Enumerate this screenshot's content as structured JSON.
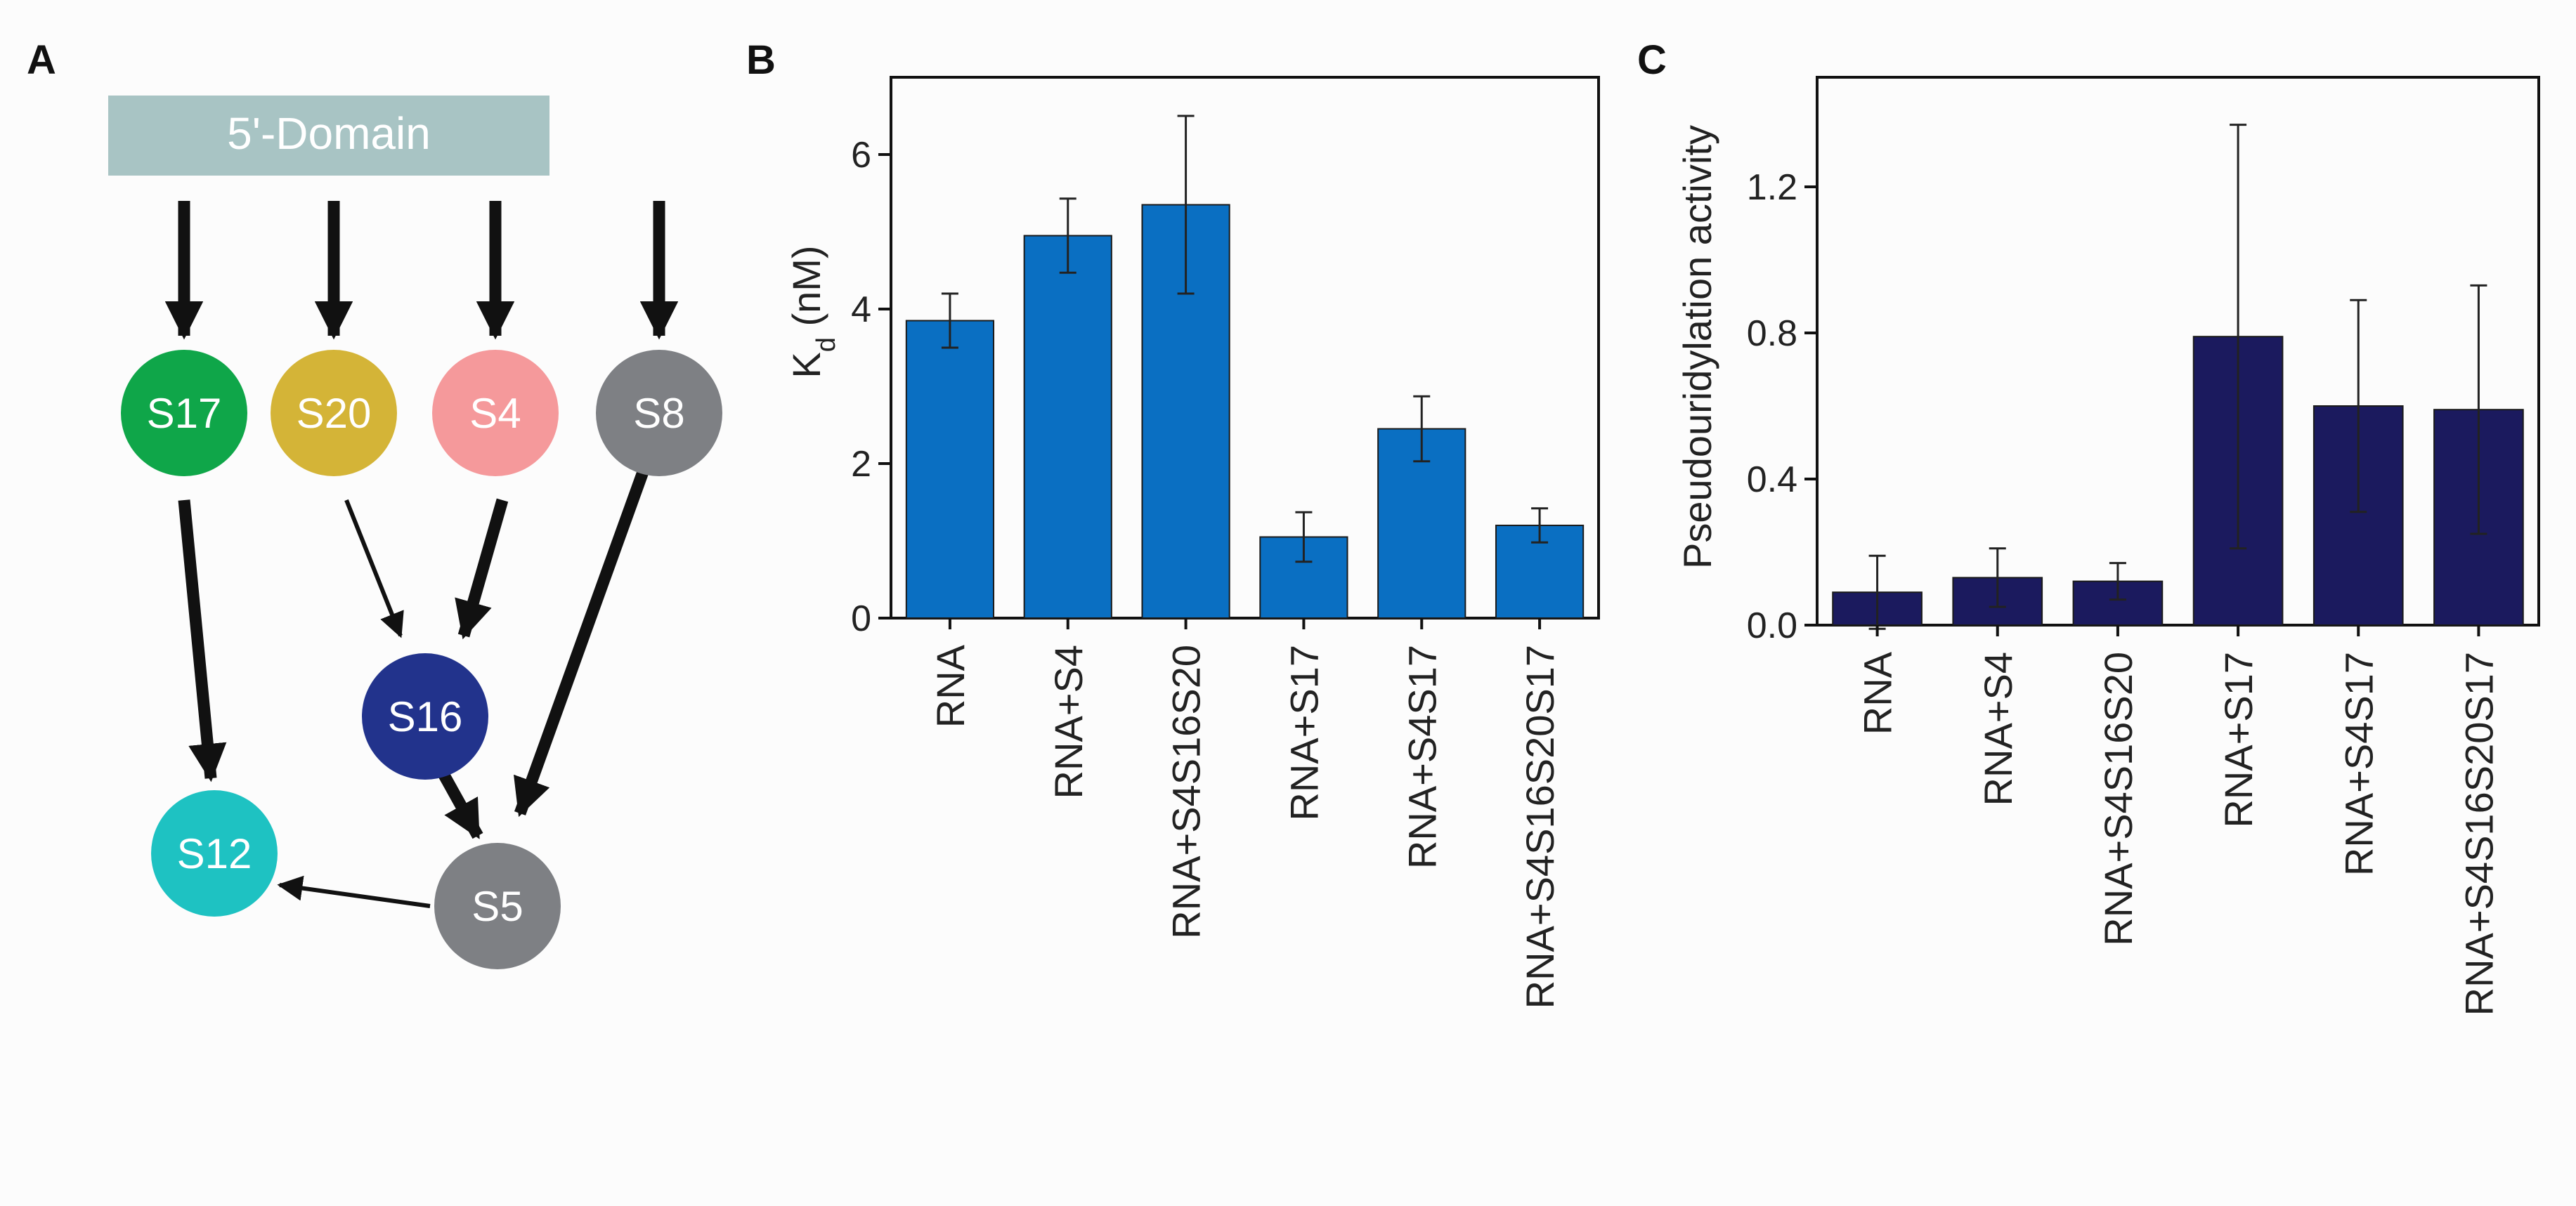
{
  "panels": {
    "A": {
      "label": "A",
      "domain_label": "5'-Domain",
      "nodes": [
        {
          "id": "S17",
          "label": "S17",
          "color": "#0fa649"
        },
        {
          "id": "S20",
          "label": "S20",
          "color": "#d4b437"
        },
        {
          "id": "S4",
          "label": "S4",
          "color": "#f5999b"
        },
        {
          "id": "S8",
          "label": "S8",
          "color": "#7e8084"
        },
        {
          "id": "S16",
          "label": "S16",
          "color": "#22338c"
        },
        {
          "id": "S12",
          "label": "S12",
          "color": "#1ec2c2"
        },
        {
          "id": "S5",
          "label": "S5",
          "color": "#7e8084"
        }
      ],
      "edges": [
        {
          "from": "5'-Domain",
          "to": "S17",
          "weight": "strong"
        },
        {
          "from": "5'-Domain",
          "to": "S20",
          "weight": "strong"
        },
        {
          "from": "5'-Domain",
          "to": "S4",
          "weight": "strong"
        },
        {
          "from": "5'-Domain",
          "to": "S8",
          "weight": "strong"
        },
        {
          "from": "S17",
          "to": "S12",
          "weight": "strong"
        },
        {
          "from": "S20",
          "to": "S16",
          "weight": "weak"
        },
        {
          "from": "S4",
          "to": "S16",
          "weight": "strong"
        },
        {
          "from": "S8",
          "to": "S5",
          "weight": "strong"
        },
        {
          "from": "S16",
          "to": "S5",
          "weight": "strong"
        },
        {
          "from": "S5",
          "to": "S12",
          "weight": "weak"
        }
      ],
      "domain_color": "#a8c4c4"
    },
    "B": {
      "label": "B"
    },
    "C": {
      "label": "C"
    }
  },
  "chart_data": [
    {
      "panel": "B",
      "type": "bar",
      "categories": [
        "RNA",
        "RNA+S4",
        "RNA+S4S16S20",
        "RNA+S17",
        "RNA+S4S17",
        "RNA+S4S16S20S17"
      ],
      "values": [
        3.85,
        4.95,
        5.35,
        1.05,
        2.45,
        1.2
      ],
      "errors": [
        0.35,
        0.48,
        1.15,
        0.32,
        0.42,
        0.22
      ],
      "ylabel_main": "K",
      "ylabel_sub": "d",
      "ylabel_unit": " (nM)",
      "ylim": [
        0,
        7
      ],
      "yticks": [
        0,
        2,
        4,
        6
      ],
      "ytick_labels": [
        "0",
        "2",
        "4",
        "6"
      ],
      "bar_color": "#0a6fc2"
    },
    {
      "panel": "C",
      "type": "bar",
      "categories": [
        "RNA",
        "RNA+S4",
        "RNA+S4S16S20",
        "RNA+S17",
        "RNA+S4S17",
        "RNA+S4S16S20S17"
      ],
      "values": [
        0.09,
        0.13,
        0.12,
        0.79,
        0.6,
        0.59
      ],
      "errors": [
        0.1,
        0.08,
        0.05,
        0.58,
        0.29,
        0.34
      ],
      "ylabel": "Pseudouridylation activity",
      "ylim": [
        0,
        1.5
      ],
      "yticks": [
        0,
        0.4,
        0.8,
        1.2
      ],
      "ytick_labels": [
        "0.0",
        "0.4",
        "0.8",
        "1.2"
      ],
      "bar_color": "#1b1a5e"
    }
  ]
}
